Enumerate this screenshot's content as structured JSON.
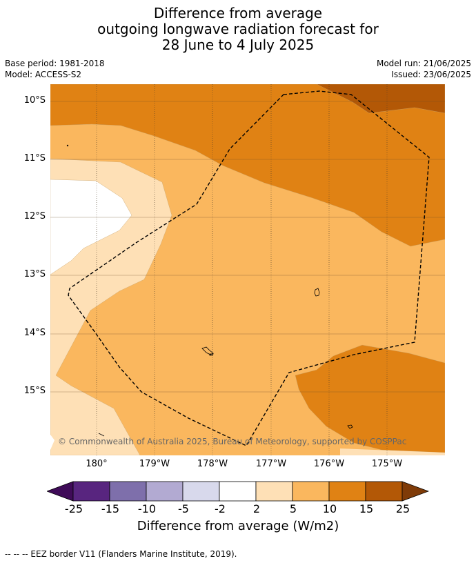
{
  "title": {
    "line1": "Difference from average",
    "line2": "outgoing longwave radiation forecast for",
    "line3": "28 June to 4 July 2025"
  },
  "meta": {
    "base_period": "Base period: 1981-2018",
    "model": "Model: ACCESS-S2",
    "model_run": "Model run: 21/06/2025",
    "issued": "Issued: 23/06/2025"
  },
  "axes": {
    "lat_labels": [
      "10°S",
      "11°S",
      "12°S",
      "13°S",
      "14°S",
      "15°S"
    ],
    "lon_labels": [
      "180°",
      "179°W",
      "178°W",
      "177°W",
      "176°W",
      "175°W"
    ]
  },
  "copyright": "© Commonwealth of Australia 2025, Bureau of Meteorology, supported by COSPPac",
  "colorbar": {
    "ticks": [
      "-25",
      "-15",
      "-10",
      "-5",
      "-2",
      "2",
      "5",
      "10",
      "15",
      "25"
    ],
    "label": "Difference from average (W/m2)",
    "colors": {
      "extend_low": "#3f0b58",
      "bin_m25_m15": "#58257f",
      "bin_m15_m10": "#7e6fab",
      "bin_m10_m5": "#b2aad2",
      "bin_m5_m2": "#d8d9ec",
      "bin_m2_2": "#ffffff",
      "bin_2_5": "#fee0b6",
      "bin_5_10": "#fab75e",
      "bin_10_15": "#e08214",
      "bin_15_25": "#b35806",
      "extend_high": "#7f3b08"
    }
  },
  "footnote": "--  --  -- EEZ border V11 (Flanders Marine Institute, 2019)."
}
